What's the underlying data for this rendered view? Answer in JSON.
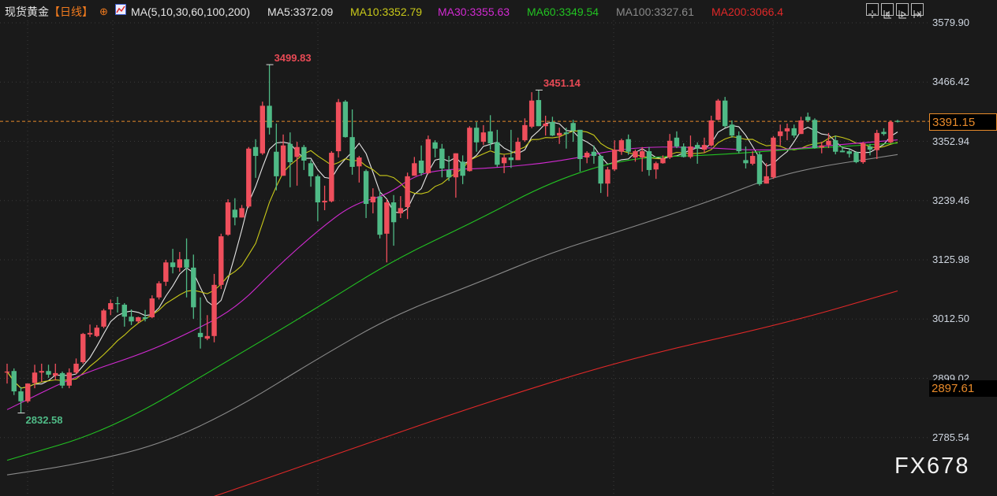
{
  "header": {
    "instrument": "现货黄金",
    "period": "【日线】",
    "period_icon": "crosshair-circle-icon",
    "indicator": "MA(5,10,30,60,100,200)",
    "ma_values": [
      {
        "label": "MA5:3372.09",
        "color": "#e6e6e6"
      },
      {
        "label": "MA10:3352.79",
        "color": "#c9c919"
      },
      {
        "label": "MA30:3355.63",
        "color": "#d22ad2"
      },
      {
        "label": "MA60:3349.54",
        "color": "#22c322"
      },
      {
        "label": "MA100:3327.61",
        "color": "#8a8a8a"
      },
      {
        "label": "MA200:3066.4",
        "color": "#e02828"
      }
    ],
    "tools": [
      "crosshair-icon",
      "zoom-start-icon",
      "play-forward-icon",
      "jump-end-icon"
    ]
  },
  "watermark": "FX678",
  "chart_data": {
    "type": "candlestick",
    "title": "",
    "colors": {
      "up": "#ef4f5c",
      "down": "#4fba86",
      "last_price": "#e88a2a",
      "background": "#1a1a1a"
    },
    "y_ticks": [
      "3579.90",
      "3466.42",
      "3352.94",
      "3239.46",
      "3125.98",
      "3012.50",
      "2899.02",
      "2785.54"
    ],
    "ylim": [
      2673,
      3590
    ],
    "grid": true,
    "last_price": {
      "value": 3391.15,
      "label": "3391.15"
    },
    "cursor_price": {
      "value": 2897.61,
      "label": "2897.61"
    },
    "annotations": [
      {
        "label": "3499.83",
        "value": 3499.83,
        "index": 38,
        "color": "#e84a55"
      },
      {
        "label": "3451.14",
        "value": 3451.14,
        "index": 77,
        "color": "#e84a55"
      },
      {
        "label": "2832.58",
        "value": 2832.58,
        "index": 2,
        "color": "#4fba86"
      }
    ],
    "ohlc": [
      [
        2910,
        2927,
        2889,
        2912
      ],
      [
        2913,
        2918,
        2867,
        2874
      ],
      [
        2874,
        2882,
        2832.58,
        2855
      ],
      [
        2855,
        2889,
        2852,
        2889
      ],
      [
        2890,
        2925,
        2880,
        2910
      ],
      [
        2910,
        2927,
        2892,
        2913
      ],
      [
        2913,
        2925,
        2900,
        2906
      ],
      [
        2904,
        2927,
        2895,
        2909
      ],
      [
        2909,
        2912,
        2880,
        2885
      ],
      [
        2885,
        2918,
        2880,
        2910
      ],
      [
        2910,
        2937,
        2907,
        2927
      ],
      [
        2930,
        2986,
        2927,
        2984
      ],
      [
        2983,
        3002,
        2978,
        2986
      ],
      [
        2980,
        3001,
        2978,
        2996
      ],
      [
        2998,
        3032,
        2995,
        3029
      ],
      [
        3031,
        3050,
        3020,
        3043
      ],
      [
        3043,
        3055,
        3025,
        3042
      ],
      [
        3040,
        3043,
        2998,
        3017
      ],
      [
        3017,
        3031,
        3001,
        3008
      ],
      [
        3008,
        3017,
        3005,
        3016
      ],
      [
        3016,
        3030,
        3008,
        3013
      ],
      [
        3016,
        3058,
        3014,
        3052
      ],
      [
        3054,
        3085,
        3050,
        3081
      ],
      [
        3084,
        3126,
        3076,
        3121
      ],
      [
        3121,
        3147,
        3100,
        3112
      ],
      [
        3111,
        3141,
        3103,
        3127
      ],
      [
        3127,
        3167,
        3054,
        3111
      ],
      [
        3111,
        3136,
        3013,
        3035
      ],
      [
        2986,
        3054,
        2956,
        2978
      ],
      [
        2975,
        3020,
        2972,
        2980
      ],
      [
        2980,
        3099,
        2968,
        3078
      ],
      [
        3078,
        3176,
        3070,
        3171
      ],
      [
        3174,
        3242,
        3172,
        3236
      ],
      [
        3222,
        3244,
        3192,
        3207
      ],
      [
        3207,
        3231,
        3207,
        3225
      ],
      [
        3228,
        3342,
        3225,
        3339
      ],
      [
        3342,
        3357,
        3283,
        3325
      ],
      [
        3330,
        3429,
        3327,
        3421
      ],
      [
        3421,
        3499.83,
        3366,
        3379
      ],
      [
        3333,
        3387,
        3259,
        3286
      ],
      [
        3287,
        3366,
        3287,
        3345
      ],
      [
        3348,
        3370,
        3265,
        3313
      ],
      [
        3323,
        3352,
        3268,
        3342
      ],
      [
        3342,
        3346,
        3298,
        3316
      ],
      [
        3311,
        3317,
        3266,
        3286
      ],
      [
        3286,
        3289,
        3200,
        3236
      ],
      [
        3236,
        3268,
        3221,
        3239
      ],
      [
        3238,
        3334,
        3236,
        3331
      ],
      [
        3334,
        3434,
        3322,
        3428
      ],
      [
        3429,
        3432,
        3360,
        3361
      ],
      [
        3361,
        3414,
        3289,
        3304
      ],
      [
        3305,
        3325,
        3274,
        3322
      ],
      [
        3296,
        3299,
        3206,
        3233
      ],
      [
        3236,
        3263,
        3215,
        3247
      ],
      [
        3247,
        3259,
        3167,
        3174
      ],
      [
        3176,
        3242,
        3121,
        3236
      ],
      [
        3236,
        3250,
        3153,
        3198
      ],
      [
        3215,
        3248,
        3206,
        3225
      ],
      [
        3227,
        3293,
        3204,
        3286
      ],
      [
        3287,
        3323,
        3287,
        3311
      ],
      [
        3316,
        3345,
        3287,
        3292
      ],
      [
        3292,
        3364,
        3290,
        3357
      ],
      [
        3351,
        3355,
        3322,
        3339
      ],
      [
        3339,
        3348,
        3284,
        3301
      ],
      [
        3298,
        3325,
        3277,
        3284
      ],
      [
        3284,
        3330,
        3245,
        3330
      ],
      [
        3314,
        3326,
        3271,
        3287
      ],
      [
        3296,
        3382,
        3295,
        3379
      ],
      [
        3379,
        3390,
        3333,
        3351
      ],
      [
        3352,
        3384,
        3346,
        3370
      ],
      [
        3372,
        3403,
        3337,
        3349
      ],
      [
        3351,
        3375,
        3304,
        3308
      ],
      [
        3311,
        3327,
        3292,
        3322
      ],
      [
        3322,
        3375,
        3302,
        3317
      ],
      [
        3317,
        3360,
        3317,
        3352
      ],
      [
        3355,
        3397,
        3352,
        3384
      ],
      [
        3381,
        3447,
        3378,
        3431
      ],
      [
        3432,
        3451.14,
        3382,
        3382
      ],
      [
        3382,
        3402,
        3364,
        3387
      ],
      [
        3390,
        3400,
        3363,
        3364
      ],
      [
        3364,
        3379,
        3348,
        3369
      ],
      [
        3370,
        3379,
        3339,
        3367
      ],
      [
        3388,
        3394,
        3352,
        3373
      ],
      [
        3375,
        3375,
        3295,
        3319
      ],
      [
        3322,
        3334,
        3311,
        3331
      ],
      [
        3333,
        3345,
        3310,
        3325
      ],
      [
        3325,
        3327,
        3254,
        3272
      ],
      [
        3272,
        3304,
        3247,
        3299
      ],
      [
        3299,
        3355,
        3296,
        3337
      ],
      [
        3333,
        3358,
        3327,
        3355
      ],
      [
        3357,
        3366,
        3327,
        3333
      ],
      [
        3322,
        3337,
        3314,
        3334
      ],
      [
        3322,
        3342,
        3295,
        3334
      ],
      [
        3334,
        3342,
        3287,
        3298
      ],
      [
        3299,
        3314,
        3281,
        3311
      ],
      [
        3311,
        3326,
        3310,
        3320
      ],
      [
        3322,
        3367,
        3319,
        3354
      ],
      [
        3360,
        3372,
        3340,
        3343
      ],
      [
        3343,
        3349,
        3322,
        3323
      ],
      [
        3323,
        3364,
        3320,
        3343
      ],
      [
        3346,
        3351,
        3310,
        3339
      ],
      [
        3337,
        3360,
        3331,
        3346
      ],
      [
        3345,
        3402,
        3343,
        3393
      ],
      [
        3394,
        3434,
        3393,
        3431
      ],
      [
        3431,
        3438,
        3379,
        3382
      ],
      [
        3385,
        3393,
        3360,
        3364
      ],
      [
        3364,
        3372,
        3330,
        3334
      ],
      [
        3317,
        3343,
        3301,
        3311
      ],
      [
        3310,
        3334,
        3307,
        3325
      ],
      [
        3328,
        3333,
        3268,
        3271
      ],
      [
        3272,
        3311,
        3272,
        3286
      ],
      [
        3284,
        3363,
        3281,
        3360
      ],
      [
        3363,
        3385,
        3345,
        3372
      ],
      [
        3372,
        3387,
        3355,
        3378
      ],
      [
        3378,
        3385,
        3360,
        3364
      ],
      [
        3367,
        3400,
        3367,
        3393
      ],
      [
        3400,
        3408,
        3390,
        3393
      ],
      [
        3394,
        3397,
        3339,
        3340
      ],
      [
        3341,
        3352,
        3330,
        3345
      ],
      [
        3346,
        3369,
        3340,
        3354
      ],
      [
        3355,
        3364,
        3328,
        3333
      ],
      [
        3335,
        3342,
        3332,
        3332
      ],
      [
        3334,
        3340,
        3322,
        3329
      ],
      [
        3332,
        3334,
        3311,
        3313
      ],
      [
        3313,
        3352,
        3310,
        3349
      ],
      [
        3343,
        3348,
        3326,
        3337
      ],
      [
        3336,
        3375,
        3319,
        3369
      ],
      [
        3371,
        3378,
        3364,
        3367
      ],
      [
        3351,
        3393,
        3349,
        3390
      ],
      [
        3392,
        3394,
        3389,
        3391.15
      ]
    ],
    "ma_series": [
      {
        "name": "MA5",
        "period": 5,
        "color": "#e6e6e6"
      },
      {
        "name": "MA10",
        "period": 10,
        "color": "#c9c919"
      },
      {
        "name": "MA30",
        "color": "#d22ad2",
        "points": [
          [
            0,
            2839
          ],
          [
            10,
            2904
          ],
          [
            20,
            2948
          ],
          [
            26,
            2984
          ],
          [
            33,
            3031
          ],
          [
            39,
            3111
          ],
          [
            45,
            3182
          ],
          [
            50,
            3232
          ],
          [
            55,
            3250
          ],
          [
            59,
            3287
          ],
          [
            63,
            3299
          ],
          [
            70,
            3301
          ],
          [
            80,
            3314
          ],
          [
            90,
            3342
          ],
          [
            100,
            3342
          ],
          [
            110,
            3334
          ],
          [
            120,
            3346
          ],
          [
            129,
            3355.63
          ]
        ]
      },
      {
        "name": "MA60",
        "color": "#22c322",
        "points": [
          [
            0,
            2742
          ],
          [
            15,
            2800
          ],
          [
            33,
            2940
          ],
          [
            45,
            3035
          ],
          [
            56,
            3126
          ],
          [
            68,
            3201
          ],
          [
            79,
            3277
          ],
          [
            90,
            3322
          ],
          [
            102,
            3326
          ],
          [
            113,
            3337
          ],
          [
            129,
            3349.54
          ]
        ]
      },
      {
        "name": "MA100",
        "color": "#8a8a8a",
        "points": [
          [
            0,
            2714
          ],
          [
            10,
            2734
          ],
          [
            22,
            2771
          ],
          [
            33,
            2839
          ],
          [
            45,
            2937
          ],
          [
            56,
            3020
          ],
          [
            68,
            3081
          ],
          [
            79,
            3141
          ],
          [
            90,
            3186
          ],
          [
            102,
            3239
          ],
          [
            113,
            3295
          ],
          [
            129,
            3327.61
          ]
        ]
      },
      {
        "name": "MA200",
        "color": "#e02828",
        "points": [
          [
            30,
            2673
          ],
          [
            45,
            2741
          ],
          [
            68,
            2847
          ],
          [
            90,
            2937
          ],
          [
            113,
            3005
          ],
          [
            129,
            3066.4
          ]
        ]
      }
    ]
  }
}
